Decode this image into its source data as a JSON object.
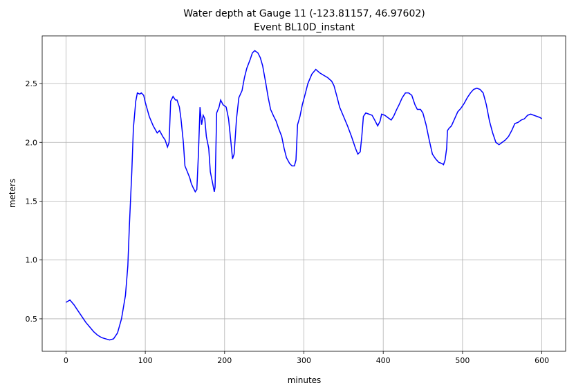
{
  "chart_data": {
    "type": "line",
    "title": "Water depth at Gauge 11 (-123.81157, 46.97602)",
    "subtitle": "Event BL10D_instant",
    "xlabel": "minutes",
    "ylabel": "meters",
    "color": "#0000ff",
    "grid": true,
    "xlim": [
      -30,
      630
    ],
    "ylim": [
      0.224,
      2.905
    ],
    "xticks": [
      0,
      100,
      200,
      300,
      400,
      500,
      600
    ],
    "yticks": [
      0.5,
      {
        "value": 1,
        "label": "1.0"
      },
      1.5,
      {
        "value": 2,
        "label": "2.0"
      },
      2.5
    ],
    "x": [
      0,
      5,
      10,
      15,
      20,
      25,
      30,
      35,
      40,
      45,
      50,
      55,
      60,
      65,
      70,
      75,
      78,
      80,
      83,
      85,
      88,
      90,
      93,
      95,
      98,
      100,
      105,
      110,
      115,
      118,
      122,
      125,
      128,
      130,
      132,
      135,
      138,
      140,
      143,
      145,
      148,
      150,
      153,
      156,
      158,
      160,
      163,
      165,
      167,
      169,
      171,
      173,
      175,
      177,
      180,
      182,
      185,
      187,
      188,
      190,
      193,
      195,
      198,
      202,
      205,
      208,
      210,
      212,
      215,
      218,
      222,
      225,
      228,
      232,
      235,
      238,
      242,
      245,
      248,
      252,
      255,
      258,
      262,
      265,
      268,
      272,
      275,
      278,
      282,
      285,
      288,
      290,
      292,
      295,
      298,
      302,
      305,
      310,
      315,
      320,
      325,
      330,
      335,
      338,
      342,
      345,
      350,
      355,
      360,
      365,
      368,
      371,
      373,
      375,
      378,
      382,
      386,
      390,
      393,
      396,
      398,
      402,
      406,
      410,
      413,
      417,
      420,
      424,
      428,
      432,
      436,
      440,
      443,
      447,
      450,
      454,
      458,
      462,
      466,
      470,
      474,
      476,
      478,
      480,
      481,
      483,
      486,
      490,
      494,
      498,
      502,
      506,
      510,
      514,
      518,
      522,
      526,
      530,
      534,
      538,
      542,
      546,
      550,
      554,
      558,
      562,
      566,
      570,
      574,
      578,
      582,
      586,
      590,
      594,
      598,
      600
    ],
    "values": [
      0.64,
      0.66,
      0.62,
      0.57,
      0.52,
      0.47,
      0.43,
      0.39,
      0.36,
      0.34,
      0.33,
      0.32,
      0.33,
      0.38,
      0.5,
      0.7,
      0.95,
      1.3,
      1.75,
      2.12,
      2.35,
      2.42,
      2.41,
      2.42,
      2.4,
      2.34,
      2.22,
      2.14,
      2.08,
      2.1,
      2.05,
      2.02,
      1.96,
      2.0,
      2.35,
      2.39,
      2.36,
      2.36,
      2.3,
      2.2,
      2.0,
      1.8,
      1.75,
      1.7,
      1.65,
      1.62,
      1.58,
      1.6,
      1.9,
      2.3,
      2.15,
      2.23,
      2.2,
      2.05,
      1.95,
      1.75,
      1.65,
      1.58,
      1.62,
      2.25,
      2.3,
      2.36,
      2.32,
      2.3,
      2.2,
      2.0,
      1.86,
      1.9,
      2.2,
      2.38,
      2.44,
      2.55,
      2.63,
      2.7,
      2.76,
      2.78,
      2.76,
      2.72,
      2.65,
      2.5,
      2.38,
      2.28,
      2.22,
      2.18,
      2.12,
      2.05,
      1.95,
      1.87,
      1.82,
      1.8,
      1.8,
      1.85,
      2.15,
      2.22,
      2.32,
      2.42,
      2.5,
      2.58,
      2.62,
      2.59,
      2.57,
      2.55,
      2.52,
      2.48,
      2.38,
      2.3,
      2.22,
      2.14,
      2.05,
      1.95,
      1.9,
      1.92,
      2.05,
      2.22,
      2.25,
      2.24,
      2.23,
      2.18,
      2.14,
      2.18,
      2.24,
      2.23,
      2.21,
      2.19,
      2.22,
      2.28,
      2.32,
      2.38,
      2.42,
      2.42,
      2.4,
      2.32,
      2.28,
      2.28,
      2.25,
      2.15,
      2.02,
      1.9,
      1.86,
      1.83,
      1.82,
      1.81,
      1.85,
      1.95,
      2.1,
      2.12,
      2.14,
      2.2,
      2.26,
      2.29,
      2.33,
      2.38,
      2.42,
      2.45,
      2.46,
      2.45,
      2.42,
      2.32,
      2.18,
      2.08,
      2.0,
      1.98,
      2.0,
      2.02,
      2.05,
      2.1,
      2.16,
      2.17,
      2.19,
      2.2,
      2.23,
      2.24,
      2.23,
      2.22,
      2.21,
      2.2
    ]
  }
}
